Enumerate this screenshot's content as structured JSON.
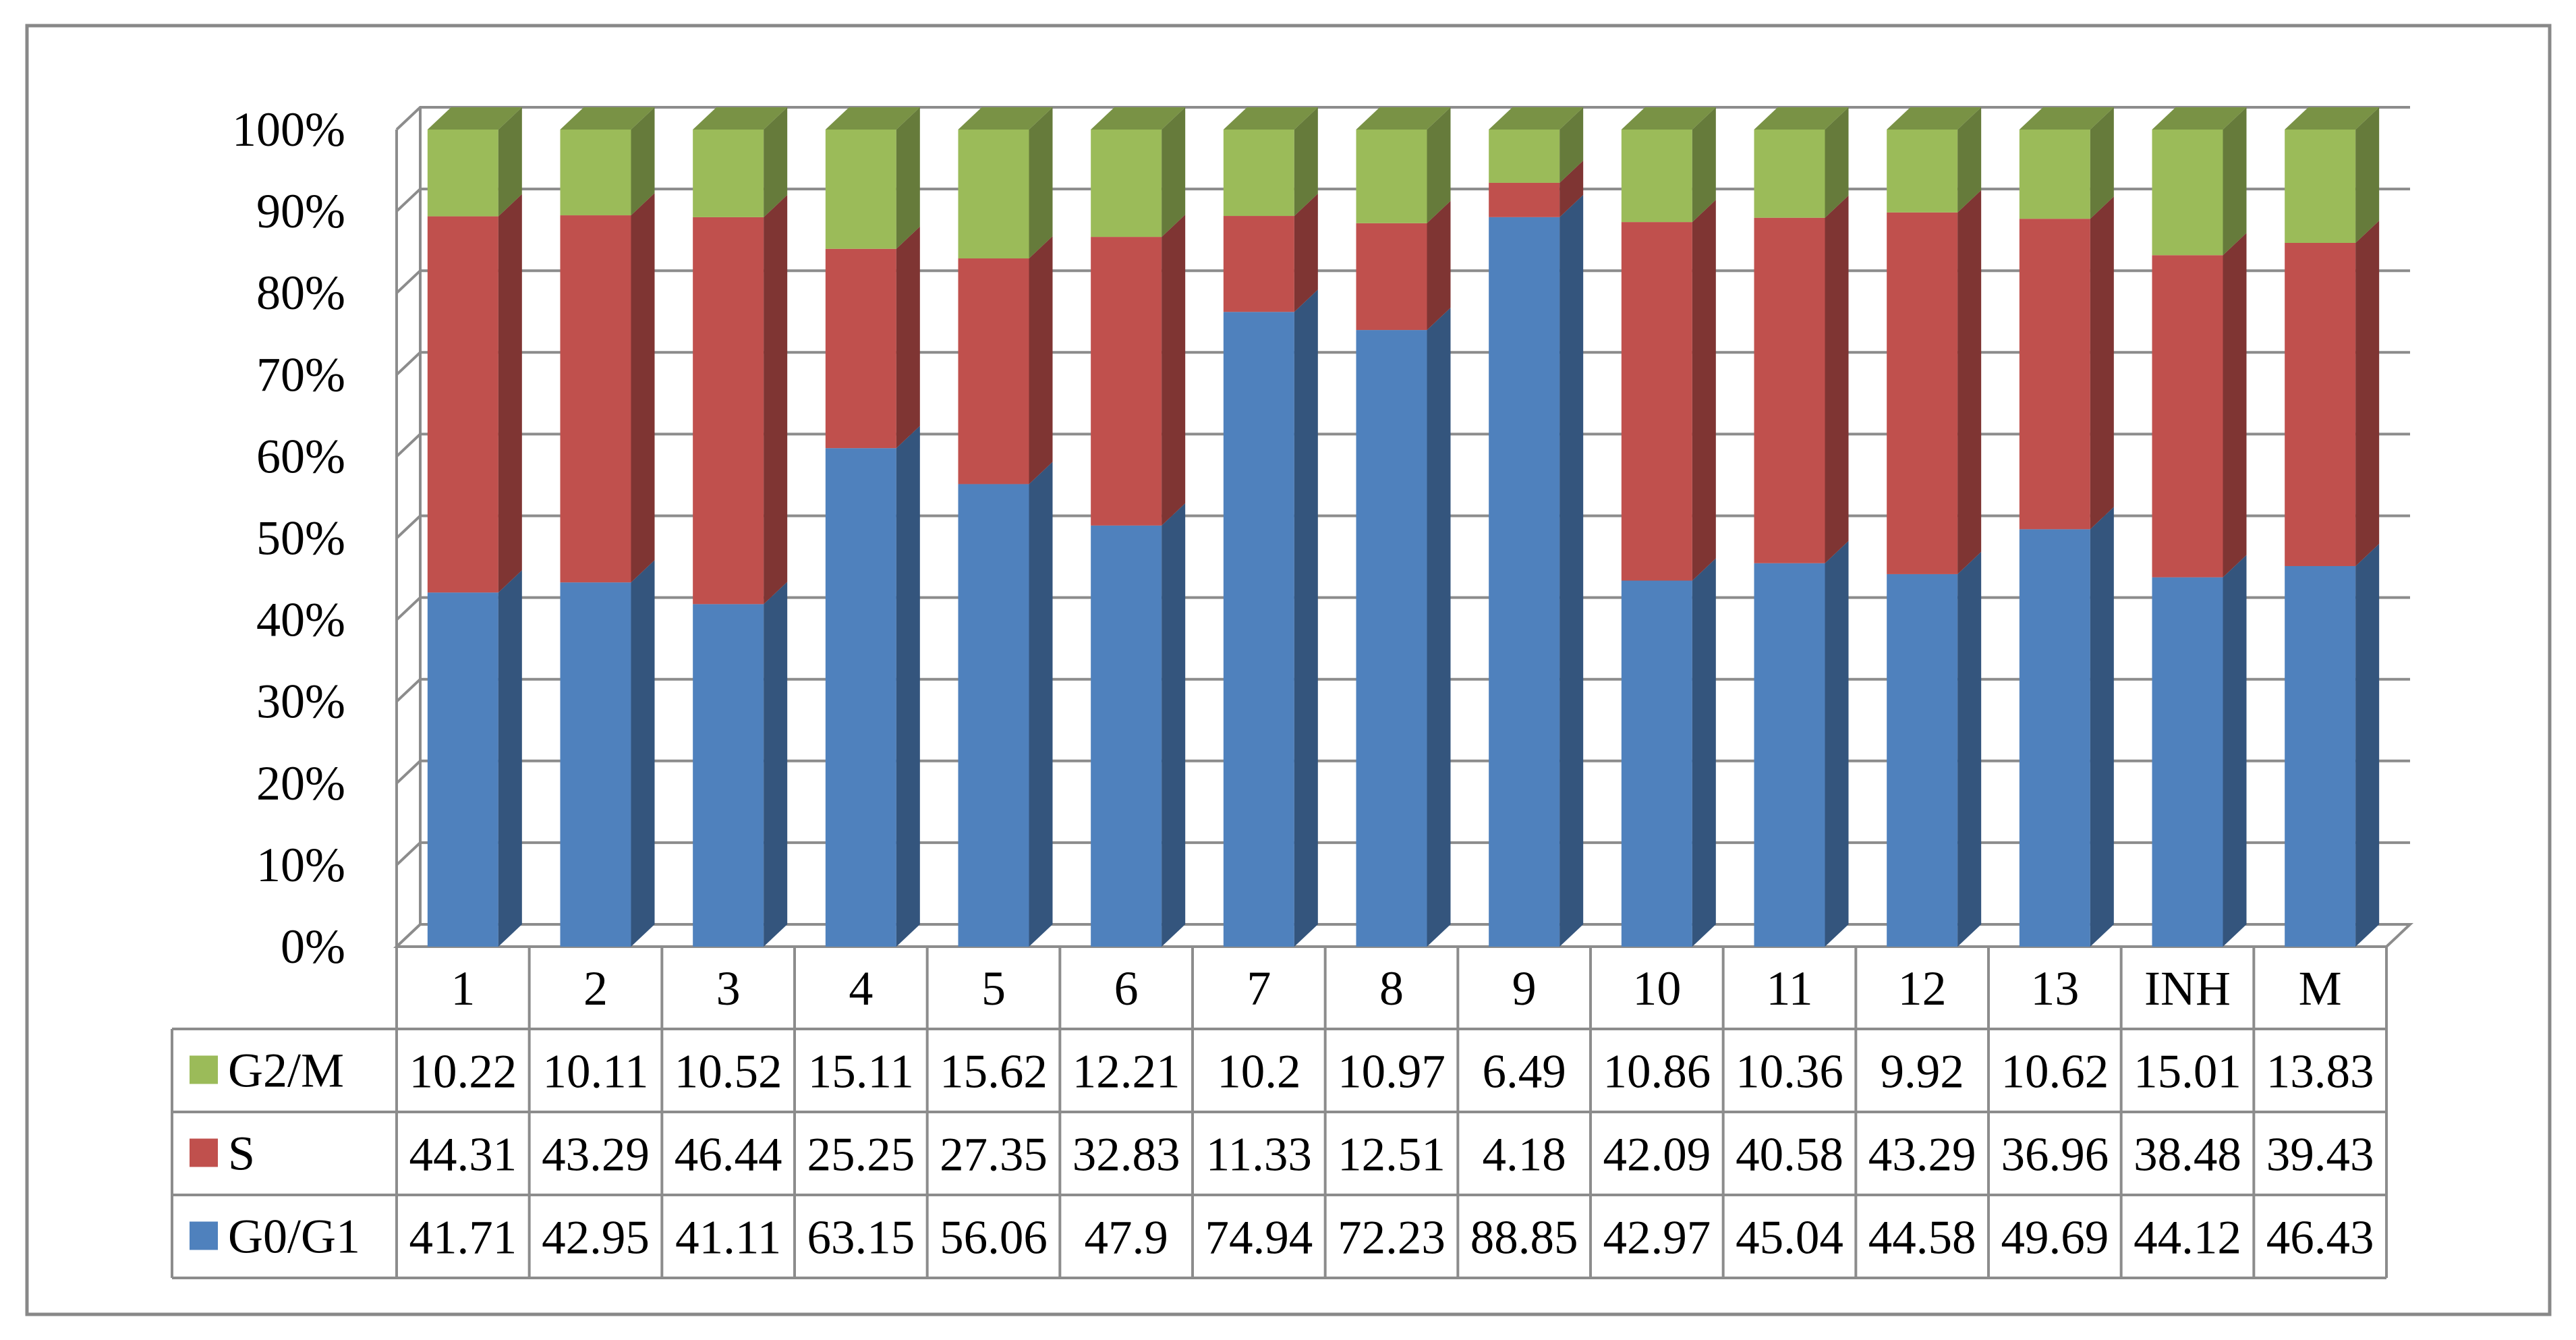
{
  "chart_data": {
    "type": "bar",
    "stacked": true,
    "percent_stacked": true,
    "three_d": true,
    "categories": [
      "1",
      "2",
      "3",
      "4",
      "5",
      "6",
      "7",
      "8",
      "9",
      "10",
      "11",
      "12",
      "13",
      "INH",
      "M"
    ],
    "series": [
      {
        "name": "G0/G1",
        "color": "#4f81bd",
        "values": [
          41.71,
          42.95,
          41.11,
          63.15,
          56.06,
          47.9,
          74.94,
          72.23,
          88.85,
          42.97,
          45.04,
          44.58,
          49.69,
          44.12,
          46.43
        ]
      },
      {
        "name": "S",
        "color": "#c0504d",
        "values": [
          44.31,
          43.29,
          46.44,
          25.25,
          27.35,
          32.83,
          11.33,
          12.51,
          4.18,
          42.09,
          40.58,
          43.29,
          36.96,
          38.48,
          39.43
        ]
      },
      {
        "name": "G2/M",
        "color": "#9bbb59",
        "values": [
          10.22,
          10.11,
          10.52,
          15.11,
          15.62,
          12.21,
          10.2,
          10.97,
          6.49,
          10.86,
          10.36,
          9.92,
          10.62,
          15.01,
          13.83
        ]
      }
    ],
    "yticks": [
      "0%",
      "10%",
      "20%",
      "30%",
      "40%",
      "50%",
      "60%",
      "70%",
      "80%",
      "90%",
      "100%"
    ],
    "ylim": [
      0,
      100
    ],
    "grid": true,
    "data_table": true,
    "table_row_order": [
      "G2/M",
      "S",
      "G0/G1"
    ]
  }
}
